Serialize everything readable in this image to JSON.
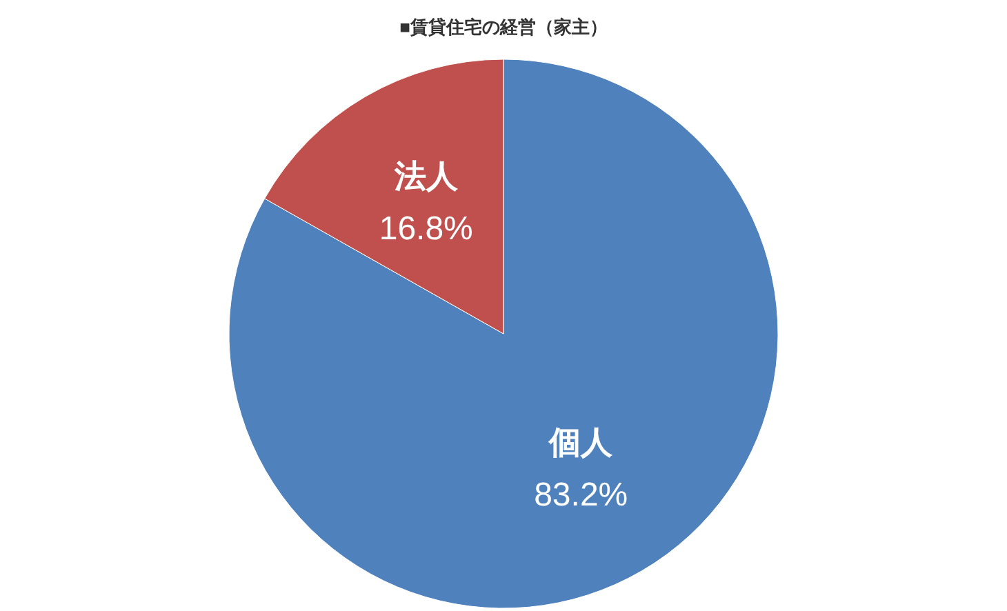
{
  "chart_data": {
    "type": "pie",
    "title": "■賃貸住宅の経営（家主）",
    "categories": [
      "個人",
      "法人"
    ],
    "values": [
      83.2,
      16.8
    ],
    "colors": [
      "#4f81bd",
      "#c0504d"
    ],
    "value_labels": [
      "83.2%",
      "16.8%"
    ]
  }
}
